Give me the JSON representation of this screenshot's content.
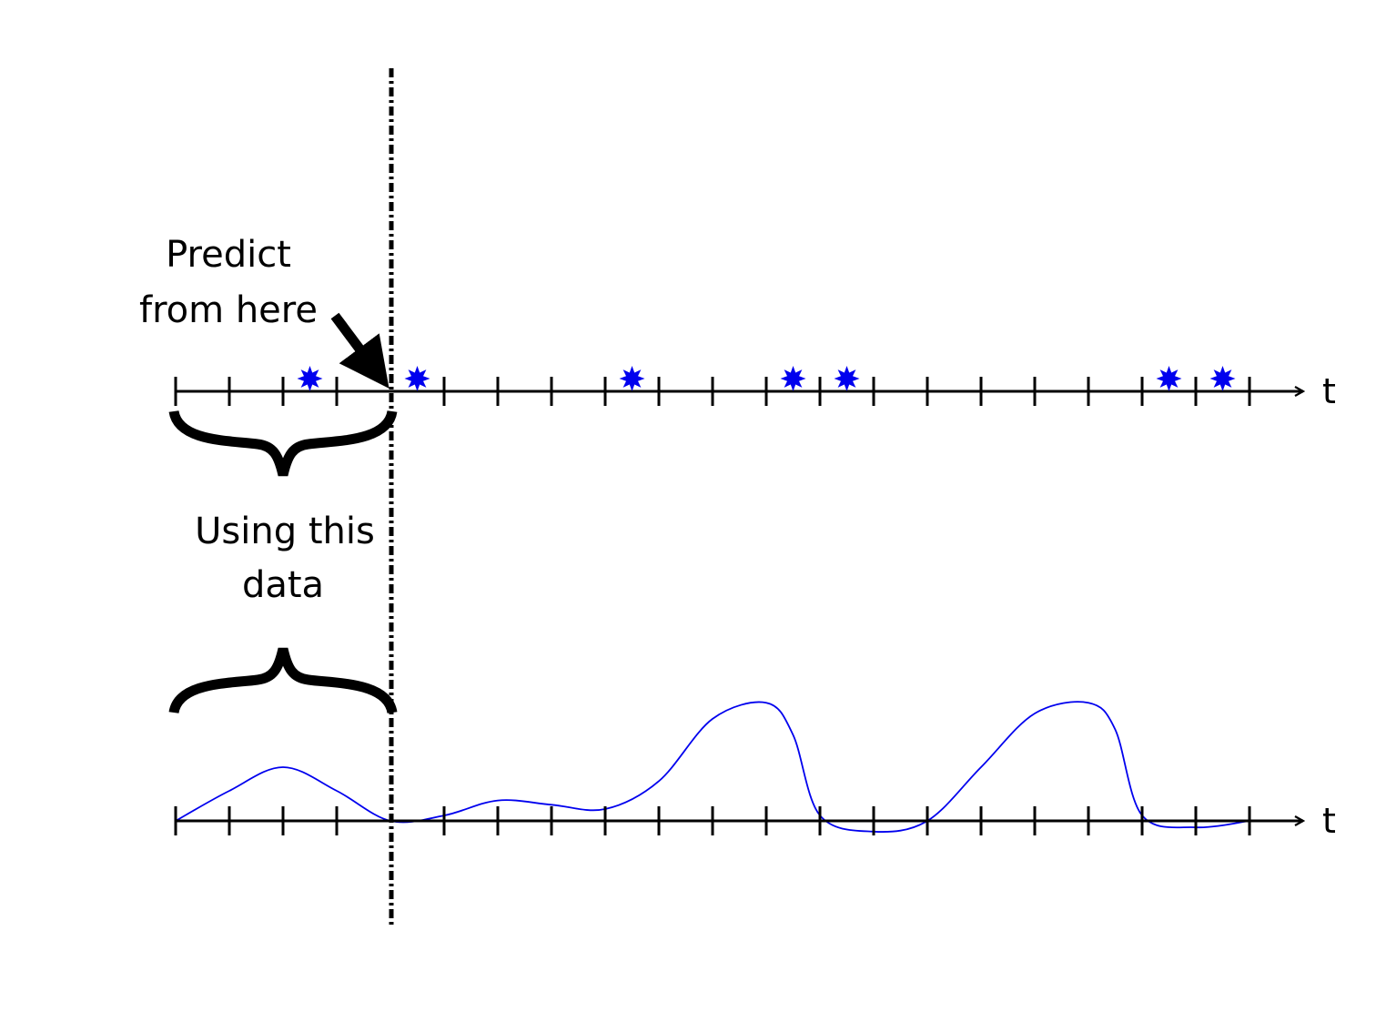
{
  "annotations": {
    "predict_line1": "Predict",
    "predict_line2": "from here",
    "using_line1": "Using this",
    "using_line2": "data"
  },
  "axes": {
    "top_label": "t",
    "bottom_label": "t"
  },
  "colors": {
    "ink": "#000000",
    "event": "#0000ee",
    "curve": "#0000ee"
  },
  "tick_count": 21,
  "split_tick": 4,
  "events_top_axis": [
    2.5,
    4.5,
    8.5,
    11.5,
    12.5,
    18.5,
    19.5
  ],
  "intensity_curve": [
    [
      0,
      0
    ],
    [
      1,
      0.28
    ],
    [
      2,
      0.5
    ],
    [
      3,
      0.28
    ],
    [
      4,
      0
    ],
    [
      5,
      0.05
    ],
    [
      6,
      0.19
    ],
    [
      7,
      0.15
    ],
    [
      8,
      0.11
    ],
    [
      9,
      0.37
    ],
    [
      10,
      0.95
    ],
    [
      11,
      1.1
    ],
    [
      11.5,
      0.8
    ],
    [
      12,
      0.05
    ],
    [
      13,
      -0.1
    ],
    [
      14,
      0
    ],
    [
      15,
      0.5
    ],
    [
      16,
      1.0
    ],
    [
      17,
      1.1
    ],
    [
      17.5,
      0.85
    ],
    [
      18,
      0.05
    ],
    [
      19,
      -0.06
    ],
    [
      20,
      0
    ]
  ]
}
